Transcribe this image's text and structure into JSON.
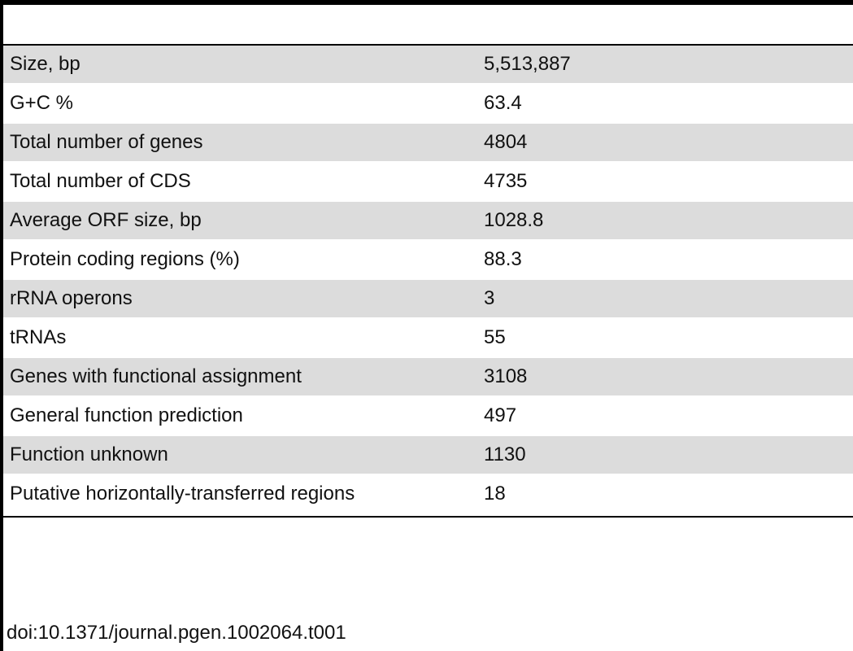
{
  "table": {
    "header": {
      "label": "",
      "value": ""
    },
    "rows": [
      {
        "label": "Size, bp",
        "value": "5,513,887"
      },
      {
        "label": "G+C %",
        "value": "63.4"
      },
      {
        "label": "Total number of genes",
        "value": "4804"
      },
      {
        "label": "Total number of CDS",
        "value": "4735"
      },
      {
        "label": "Average ORF size, bp",
        "value": "1028.8"
      },
      {
        "label": "Protein coding regions (%)",
        "value": "88.3"
      },
      {
        "label": "rRNA operons",
        "value": "3"
      },
      {
        "label": "tRNAs",
        "value": "55"
      },
      {
        "label": "Genes with functional assignment",
        "value": "3108"
      },
      {
        "label": "General function prediction",
        "value": "497"
      },
      {
        "label": "Function unknown",
        "value": "1130"
      },
      {
        "label": "Putative horizontally-transferred regions",
        "value": "18"
      }
    ]
  },
  "footnote": {
    "doi": "doi:10.1371/journal.pgen.1002064.t001"
  },
  "colors": {
    "rule": "#000000",
    "shaded_row": "#dcdcdc",
    "text": "#111111"
  }
}
